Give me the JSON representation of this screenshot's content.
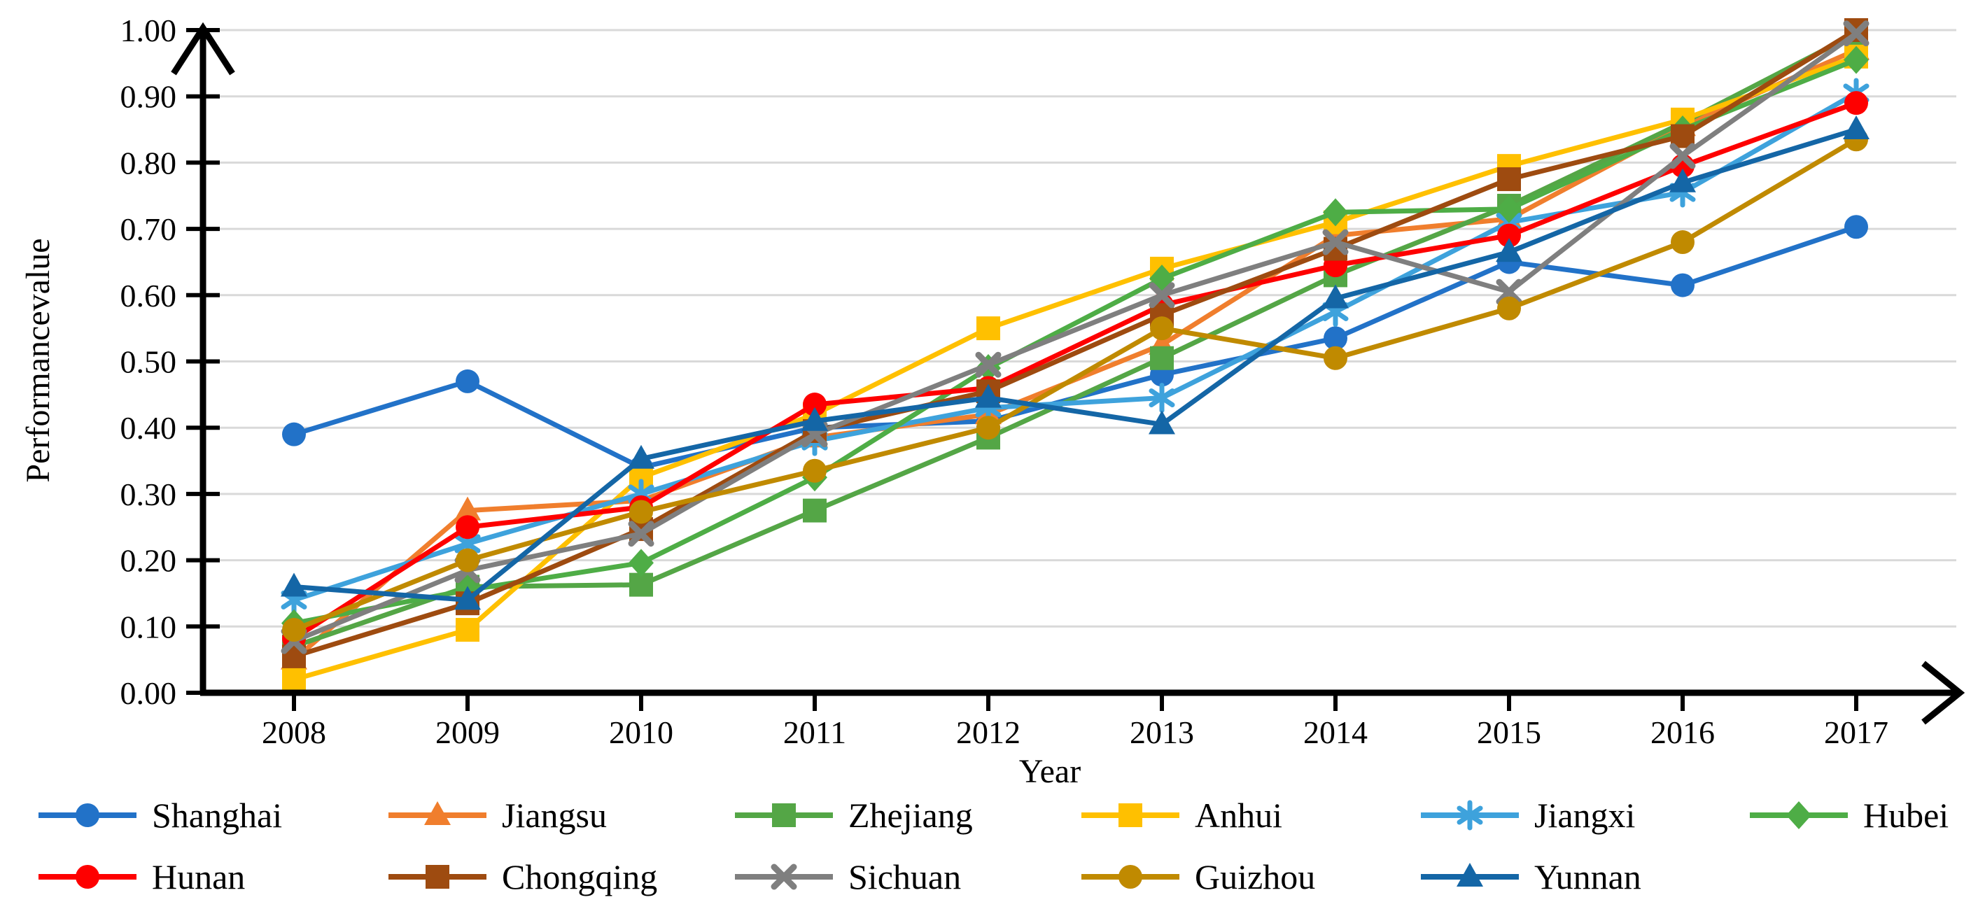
{
  "figure": {
    "background": "#FFFFFF",
    "axis_color": "#000000",
    "grid_color": "#D9D9D9",
    "text_color": "#000000"
  },
  "chart_data": {
    "type": "line",
    "title": "",
    "xlabel": "Year",
    "ylabel": "Performancevalue",
    "x": [
      2008,
      2009,
      2010,
      2011,
      2012,
      2013,
      2014,
      2015,
      2016,
      2017
    ],
    "x_labels": [
      "2008",
      "2009",
      "2010",
      "2011",
      "2012",
      "2013",
      "2014",
      "2015",
      "2016",
      "2017"
    ],
    "ylim": [
      0.0,
      1.0
    ],
    "ytick_step": 0.1,
    "ytick_labels": [
      "0.00",
      "0.10",
      "0.20",
      "0.30",
      "0.40",
      "0.50",
      "0.60",
      "0.70",
      "0.80",
      "0.90",
      "1.00"
    ],
    "grid": "horizontal-only",
    "legend_position": "bottom-two-rows",
    "series": [
      {
        "name": "Shanghai",
        "color": "#2272C8",
        "marker": "circle",
        "values": [
          0.39,
          0.47,
          0.34,
          0.4,
          0.41,
          0.48,
          0.535,
          0.65,
          0.615,
          0.703
        ]
      },
      {
        "name": "Jiangsu",
        "color": "#F07E2D",
        "marker": "triangle",
        "values": [
          0.05,
          0.275,
          0.29,
          0.385,
          0.42,
          0.525,
          0.69,
          0.715,
          0.855,
          0.97
        ]
      },
      {
        "name": "Zhejiang",
        "color": "#54A646",
        "marker": "square",
        "values": [
          0.07,
          0.16,
          0.163,
          0.275,
          0.385,
          0.505,
          0.63,
          0.735,
          0.86,
          0.995
        ]
      },
      {
        "name": "Anhui",
        "color": "#FFC000",
        "marker": "square",
        "values": [
          0.02,
          0.095,
          0.325,
          0.42,
          0.55,
          0.64,
          0.71,
          0.795,
          0.865,
          0.96
        ]
      },
      {
        "name": "Jiangxi",
        "color": "#3EA2DC",
        "marker": "asterisk",
        "values": [
          0.14,
          0.225,
          0.3,
          0.38,
          0.43,
          0.445,
          0.575,
          0.71,
          0.755,
          0.905
        ]
      },
      {
        "name": "Hubei",
        "color": "#4EAD46",
        "marker": "diamond",
        "values": [
          0.105,
          0.155,
          0.196,
          0.325,
          0.49,
          0.625,
          0.725,
          0.73,
          0.85,
          0.955
        ]
      },
      {
        "name": "Hunan",
        "color": "#FE0000",
        "marker": "circle",
        "values": [
          0.082,
          0.25,
          0.28,
          0.435,
          0.46,
          0.585,
          0.645,
          0.69,
          0.795,
          0.89
        ]
      },
      {
        "name": "Chongqing",
        "color": "#9E4B10",
        "marker": "square",
        "values": [
          0.055,
          0.135,
          0.247,
          0.395,
          0.455,
          0.57,
          0.67,
          0.775,
          0.84,
          1.0
        ]
      },
      {
        "name": "Sichuan",
        "color": "#7F7F7F",
        "marker": "x",
        "values": [
          0.078,
          0.185,
          0.24,
          0.39,
          0.495,
          0.6,
          0.68,
          0.605,
          0.81,
          0.995
        ]
      },
      {
        "name": "Guizhou",
        "color": "#C08A00",
        "marker": "circle",
        "values": [
          0.095,
          0.2,
          0.273,
          0.335,
          0.4,
          0.55,
          0.505,
          0.58,
          0.68,
          0.835
        ]
      },
      {
        "name": "Yunnan",
        "color": "#1466A6",
        "marker": "triangle",
        "values": [
          0.16,
          0.14,
          0.353,
          0.41,
          0.445,
          0.405,
          0.595,
          0.665,
          0.77,
          0.85
        ]
      }
    ]
  }
}
